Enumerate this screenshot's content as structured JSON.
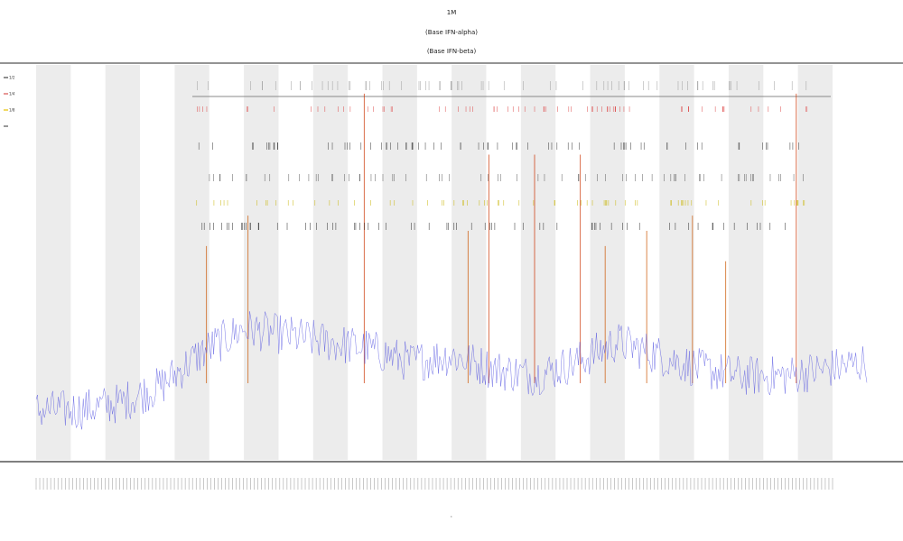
{
  "chart_data": {
    "type": "line",
    "title_lines": [
      "1M",
      "(Base IFN-alpha)",
      "(Base IFN-beta)"
    ],
    "xlabel": "t",
    "legend": [
      {
        "label": "1/2",
        "color": "#444444"
      },
      {
        "label": "1/4",
        "color": "#d9534f"
      },
      {
        "label": "1/8",
        "color": "#e8c200"
      },
      {
        "label": "",
        "color": "#555555"
      }
    ],
    "bands": {
      "count": 12
    },
    "series": [
      {
        "color": "#4a4adf",
        "points": 600,
        "profile": [
          [
            0,
            0.08
          ],
          [
            0.05,
            0.08
          ],
          [
            0.1,
            0.1
          ],
          [
            0.15,
            0.15
          ],
          [
            0.2,
            0.25
          ],
          [
            0.25,
            0.32
          ],
          [
            0.3,
            0.3
          ],
          [
            0.35,
            0.28
          ],
          [
            0.4,
            0.26
          ],
          [
            0.45,
            0.22
          ],
          [
            0.5,
            0.24
          ],
          [
            0.55,
            0.2
          ],
          [
            0.6,
            0.18
          ],
          [
            0.65,
            0.22
          ],
          [
            0.7,
            0.28
          ],
          [
            0.75,
            0.24
          ],
          [
            0.8,
            0.2
          ],
          [
            0.85,
            0.18
          ],
          [
            0.9,
            0.18
          ],
          [
            0.95,
            0.2
          ],
          [
            1,
            0.22
          ]
        ]
      }
    ],
    "spikes": [
      {
        "x": 0.205,
        "h": 0.45,
        "color": "#cc5500"
      },
      {
        "x": 0.255,
        "h": 0.55,
        "color": "#cc5500"
      },
      {
        "x": 0.395,
        "h": 0.95,
        "color": "#cc3300"
      },
      {
        "x": 0.52,
        "h": 0.5,
        "color": "#cc5500"
      },
      {
        "x": 0.545,
        "h": 0.75,
        "color": "#cc3300"
      },
      {
        "x": 0.6,
        "h": 0.75,
        "color": "#cc3300"
      },
      {
        "x": 0.655,
        "h": 0.75,
        "color": "#cc3300"
      },
      {
        "x": 0.685,
        "h": 0.45,
        "color": "#cc5500"
      },
      {
        "x": 0.735,
        "h": 0.5,
        "color": "#cc5500"
      },
      {
        "x": 0.79,
        "h": 0.55,
        "color": "#cc5500"
      },
      {
        "x": 0.83,
        "h": 0.4,
        "color": "#cc5500"
      },
      {
        "x": 0.915,
        "h": 0.95,
        "color": "#cc3300"
      }
    ]
  }
}
